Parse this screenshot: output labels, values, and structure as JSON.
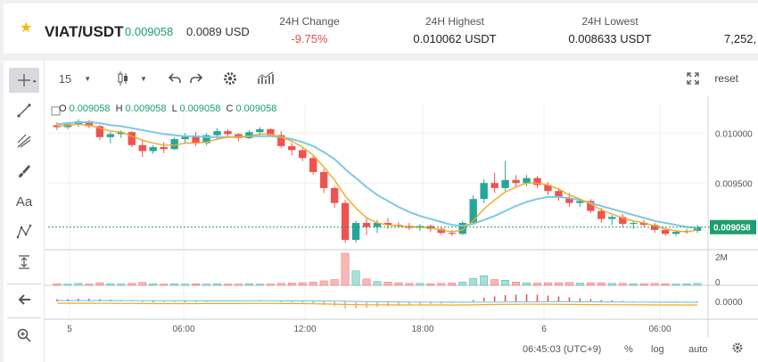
{
  "ticker": {
    "pair": "VIAT/USDT",
    "price": "0.009058",
    "fiat": "0.0089 USD",
    "stats": [
      {
        "label": "24H Change",
        "value": "-9.75%"
      },
      {
        "label": "24H Highest",
        "value": "0.010062 USDT"
      },
      {
        "label": "24H Lowest",
        "value": "0.008633 USDT"
      },
      {
        "label": "",
        "value": "7,252,"
      }
    ]
  },
  "toolbar": {
    "interval": "15",
    "reset_label": "reset"
  },
  "ohlc": {
    "open_label": "O",
    "open": "0.009058",
    "high_label": "H",
    "high": "0.009058",
    "low_label": "L",
    "low": "0.009058",
    "close_label": "C",
    "close": "0.009058"
  },
  "bottom_bar": {
    "time": "06:45:03 (UTC+9)",
    "percent_label": "%",
    "log_label": "log",
    "auto_label": "auto"
  },
  "colors": {
    "up": "#26a69a",
    "down": "#ef5350",
    "ma_fast": "#f5a623",
    "ma_slow": "#7ec8e3",
    "accent": "#1aa06b"
  },
  "chart_data": {
    "type": "line",
    "title": "",
    "price_axis_ticks": [
      "0.010000",
      "0.009500",
      "0.009058"
    ],
    "volume_axis_ticks": [
      "2M",
      "0"
    ],
    "indicator_axis_ticks": [
      "0.0000"
    ],
    "time_axis_ticks": [
      "5",
      "06:00",
      "12:00",
      "18:00",
      "6",
      "06:00"
    ],
    "last_price": 0.009058,
    "ylim": [
      0.00885,
      0.01028
    ],
    "candles": [
      [
        0.01008,
        0.01011,
        0.01003,
        0.01006
      ],
      [
        0.01006,
        0.0101,
        0.01004,
        0.01009
      ],
      [
        0.01009,
        0.01014,
        0.01006,
        0.01012
      ],
      [
        0.01012,
        0.01013,
        0.01005,
        0.01007
      ],
      [
        0.01007,
        0.01008,
        0.00993,
        0.00996
      ],
      [
        0.00996,
        0.01001,
        0.0099,
        0.00999
      ],
      [
        0.00999,
        0.01003,
        0.00995,
        0.01001
      ],
      [
        0.01001,
        0.01002,
        0.00986,
        0.00988
      ],
      [
        0.00988,
        0.00993,
        0.00976,
        0.00982
      ],
      [
        0.00982,
        0.00988,
        0.00979,
        0.00986
      ],
      [
        0.00986,
        0.00991,
        0.0098,
        0.00984
      ],
      [
        0.00984,
        0.00996,
        0.00983,
        0.00994
      ],
      [
        0.00994,
        0.01,
        0.0099,
        0.00997
      ],
      [
        0.00997,
        0.01001,
        0.00987,
        0.0099
      ],
      [
        0.0099,
        0.01,
        0.00988,
        0.00998
      ],
      [
        0.00998,
        0.01005,
        0.00993,
        0.01002
      ],
      [
        0.01002,
        0.01004,
        0.00996,
        0.00999
      ],
      [
        0.00999,
        0.01,
        0.00992,
        0.00995
      ],
      [
        0.00995,
        0.01003,
        0.00994,
        0.01001
      ],
      [
        0.01001,
        0.01006,
        0.00998,
        0.01004
      ],
      [
        0.01004,
        0.01005,
        0.00996,
        0.00998
      ],
      [
        0.00998,
        0.01002,
        0.00985,
        0.00987
      ],
      [
        0.00987,
        0.0099,
        0.00978,
        0.00983
      ],
      [
        0.00983,
        0.00985,
        0.00972,
        0.00975
      ],
      [
        0.00975,
        0.00977,
        0.00958,
        0.00961
      ],
      [
        0.00961,
        0.00964,
        0.0094,
        0.00945
      ],
      [
        0.00945,
        0.00947,
        0.00925,
        0.0093
      ],
      [
        0.0093,
        0.00933,
        0.0089,
        0.00893
      ],
      [
        0.00893,
        0.00912,
        0.0089,
        0.0091
      ],
      [
        0.0091,
        0.00916,
        0.00898,
        0.00906
      ],
      [
        0.00906,
        0.00913,
        0.009,
        0.0091
      ],
      [
        0.0091,
        0.00915,
        0.00904,
        0.00908
      ],
      [
        0.00908,
        0.00911,
        0.00905,
        0.00907
      ],
      [
        0.00907,
        0.0091,
        0.00903,
        0.00905
      ],
      [
        0.00905,
        0.00909,
        0.00902,
        0.00907
      ],
      [
        0.00907,
        0.00908,
        0.00901,
        0.00904
      ],
      [
        0.00904,
        0.00906,
        0.00898,
        0.009
      ],
      [
        0.009,
        0.00903,
        0.00897,
        0.00899
      ],
      [
        0.00899,
        0.00912,
        0.00898,
        0.0091
      ],
      [
        0.0091,
        0.00938,
        0.00908,
        0.00934
      ],
      [
        0.00934,
        0.00954,
        0.0093,
        0.0095
      ],
      [
        0.0095,
        0.0096,
        0.0094,
        0.00945
      ],
      [
        0.00945,
        0.00972,
        0.00942,
        0.00953
      ],
      [
        0.00953,
        0.00958,
        0.00946,
        0.0095
      ],
      [
        0.0095,
        0.00958,
        0.00947,
        0.00955
      ],
      [
        0.00955,
        0.00957,
        0.00945,
        0.00948
      ],
      [
        0.00948,
        0.00951,
        0.00938,
        0.00942
      ],
      [
        0.00942,
        0.00945,
        0.00932,
        0.00935
      ],
      [
        0.00935,
        0.0094,
        0.00926,
        0.0093
      ],
      [
        0.0093,
        0.00934,
        0.00926,
        0.00932
      ],
      [
        0.00932,
        0.00934,
        0.0092,
        0.00922
      ],
      [
        0.00922,
        0.00925,
        0.0091,
        0.00914
      ],
      [
        0.00914,
        0.00918,
        0.00908,
        0.00916
      ],
      [
        0.00916,
        0.00919,
        0.00906,
        0.00909
      ],
      [
        0.00909,
        0.00912,
        0.00904,
        0.0091
      ],
      [
        0.0091,
        0.00913,
        0.00906,
        0.00908
      ],
      [
        0.00908,
        0.0091,
        0.009,
        0.00903
      ],
      [
        0.00903,
        0.00905,
        0.00897,
        0.00899
      ],
      [
        0.00899,
        0.00903,
        0.00897,
        0.00901
      ],
      [
        0.00901,
        0.00904,
        0.00899,
        0.00902
      ],
      [
        0.00902,
        0.00908,
        0.009,
        0.00906
      ]
    ],
    "ma_fast": [
      0.01007,
      0.01008,
      0.01009,
      0.01008,
      0.01005,
      0.01002,
      0.01001,
      0.00997,
      0.00993,
      0.0099,
      0.00988,
      0.00988,
      0.0099,
      0.0099,
      0.00991,
      0.00994,
      0.00996,
      0.00996,
      0.00997,
      0.00999,
      0.00999,
      0.00996,
      0.00992,
      0.00986,
      0.00978,
      0.00966,
      0.00953,
      0.00937,
      0.00925,
      0.00915,
      0.0091,
      0.00908,
      0.00907,
      0.00906,
      0.00906,
      0.00905,
      0.00903,
      0.00901,
      0.00903,
      0.00912,
      0.00924,
      0.00933,
      0.00941,
      0.00946,
      0.0095,
      0.0095,
      0.00948,
      0.00944,
      0.00938,
      0.00934,
      0.00929,
      0.00923,
      0.00919,
      0.00915,
      0.00912,
      0.0091,
      0.00907,
      0.00904,
      0.00902,
      0.00901,
      0.00903
    ],
    "ma_slow": [
      0.01009,
      0.0101,
      0.01011,
      0.01011,
      0.0101,
      0.01008,
      0.01007,
      0.01005,
      0.01003,
      0.01001,
      0.00999,
      0.00998,
      0.00997,
      0.00997,
      0.00996,
      0.00996,
      0.00996,
      0.00996,
      0.00997,
      0.00997,
      0.00997,
      0.00996,
      0.00994,
      0.00991,
      0.00987,
      0.00981,
      0.00974,
      0.00964,
      0.00955,
      0.00946,
      0.00938,
      0.00932,
      0.00926,
      0.00921,
      0.00917,
      0.00914,
      0.00911,
      0.00908,
      0.00907,
      0.00909,
      0.00913,
      0.00917,
      0.00922,
      0.00927,
      0.00931,
      0.00934,
      0.00936,
      0.00936,
      0.00935,
      0.00933,
      0.0093,
      0.00927,
      0.00924,
      0.00921,
      0.00918,
      0.00915,
      0.00912,
      0.0091,
      0.00908,
      0.00906,
      0.00905
    ],
    "volume": [
      0.05,
      0.04,
      0.06,
      0.04,
      0.08,
      0.05,
      0.04,
      0.06,
      0.09,
      0.05,
      0.04,
      0.05,
      0.04,
      0.05,
      0.04,
      0.05,
      0.04,
      0.04,
      0.05,
      0.04,
      0.04,
      0.06,
      0.07,
      0.08,
      0.1,
      0.14,
      0.18,
      1.0,
      0.45,
      0.2,
      0.12,
      0.1,
      0.08,
      0.06,
      0.06,
      0.05,
      0.06,
      0.07,
      0.1,
      0.22,
      0.3,
      0.18,
      0.16,
      0.1,
      0.08,
      0.07,
      0.08,
      0.08,
      0.09,
      0.07,
      0.08,
      0.08,
      0.06,
      0.06,
      0.05,
      0.05,
      0.06,
      0.05,
      0.04,
      0.05,
      0.06
    ],
    "macd_hist": [
      0.05,
      0.05,
      0.06,
      0.06,
      0.05,
      0.04,
      0.03,
      0.02,
      0.01,
      0.0,
      -0.01,
      -0.01,
      0.0,
      0.01,
      0.01,
      0.02,
      0.02,
      0.02,
      0.02,
      0.03,
      0.02,
      0.01,
      -0.01,
      -0.03,
      -0.05,
      -0.08,
      -0.11,
      -0.16,
      -0.16,
      -0.15,
      -0.13,
      -0.11,
      -0.1,
      -0.08,
      -0.07,
      -0.06,
      -0.05,
      -0.04,
      -0.02,
      0.03,
      0.08,
      0.11,
      0.14,
      0.15,
      0.16,
      0.15,
      0.13,
      0.11,
      0.09,
      0.07,
      0.05,
      0.03,
      0.02,
      0.01,
      0.0,
      -0.01,
      -0.02,
      -0.02,
      -0.02,
      -0.01,
      0.0
    ]
  }
}
